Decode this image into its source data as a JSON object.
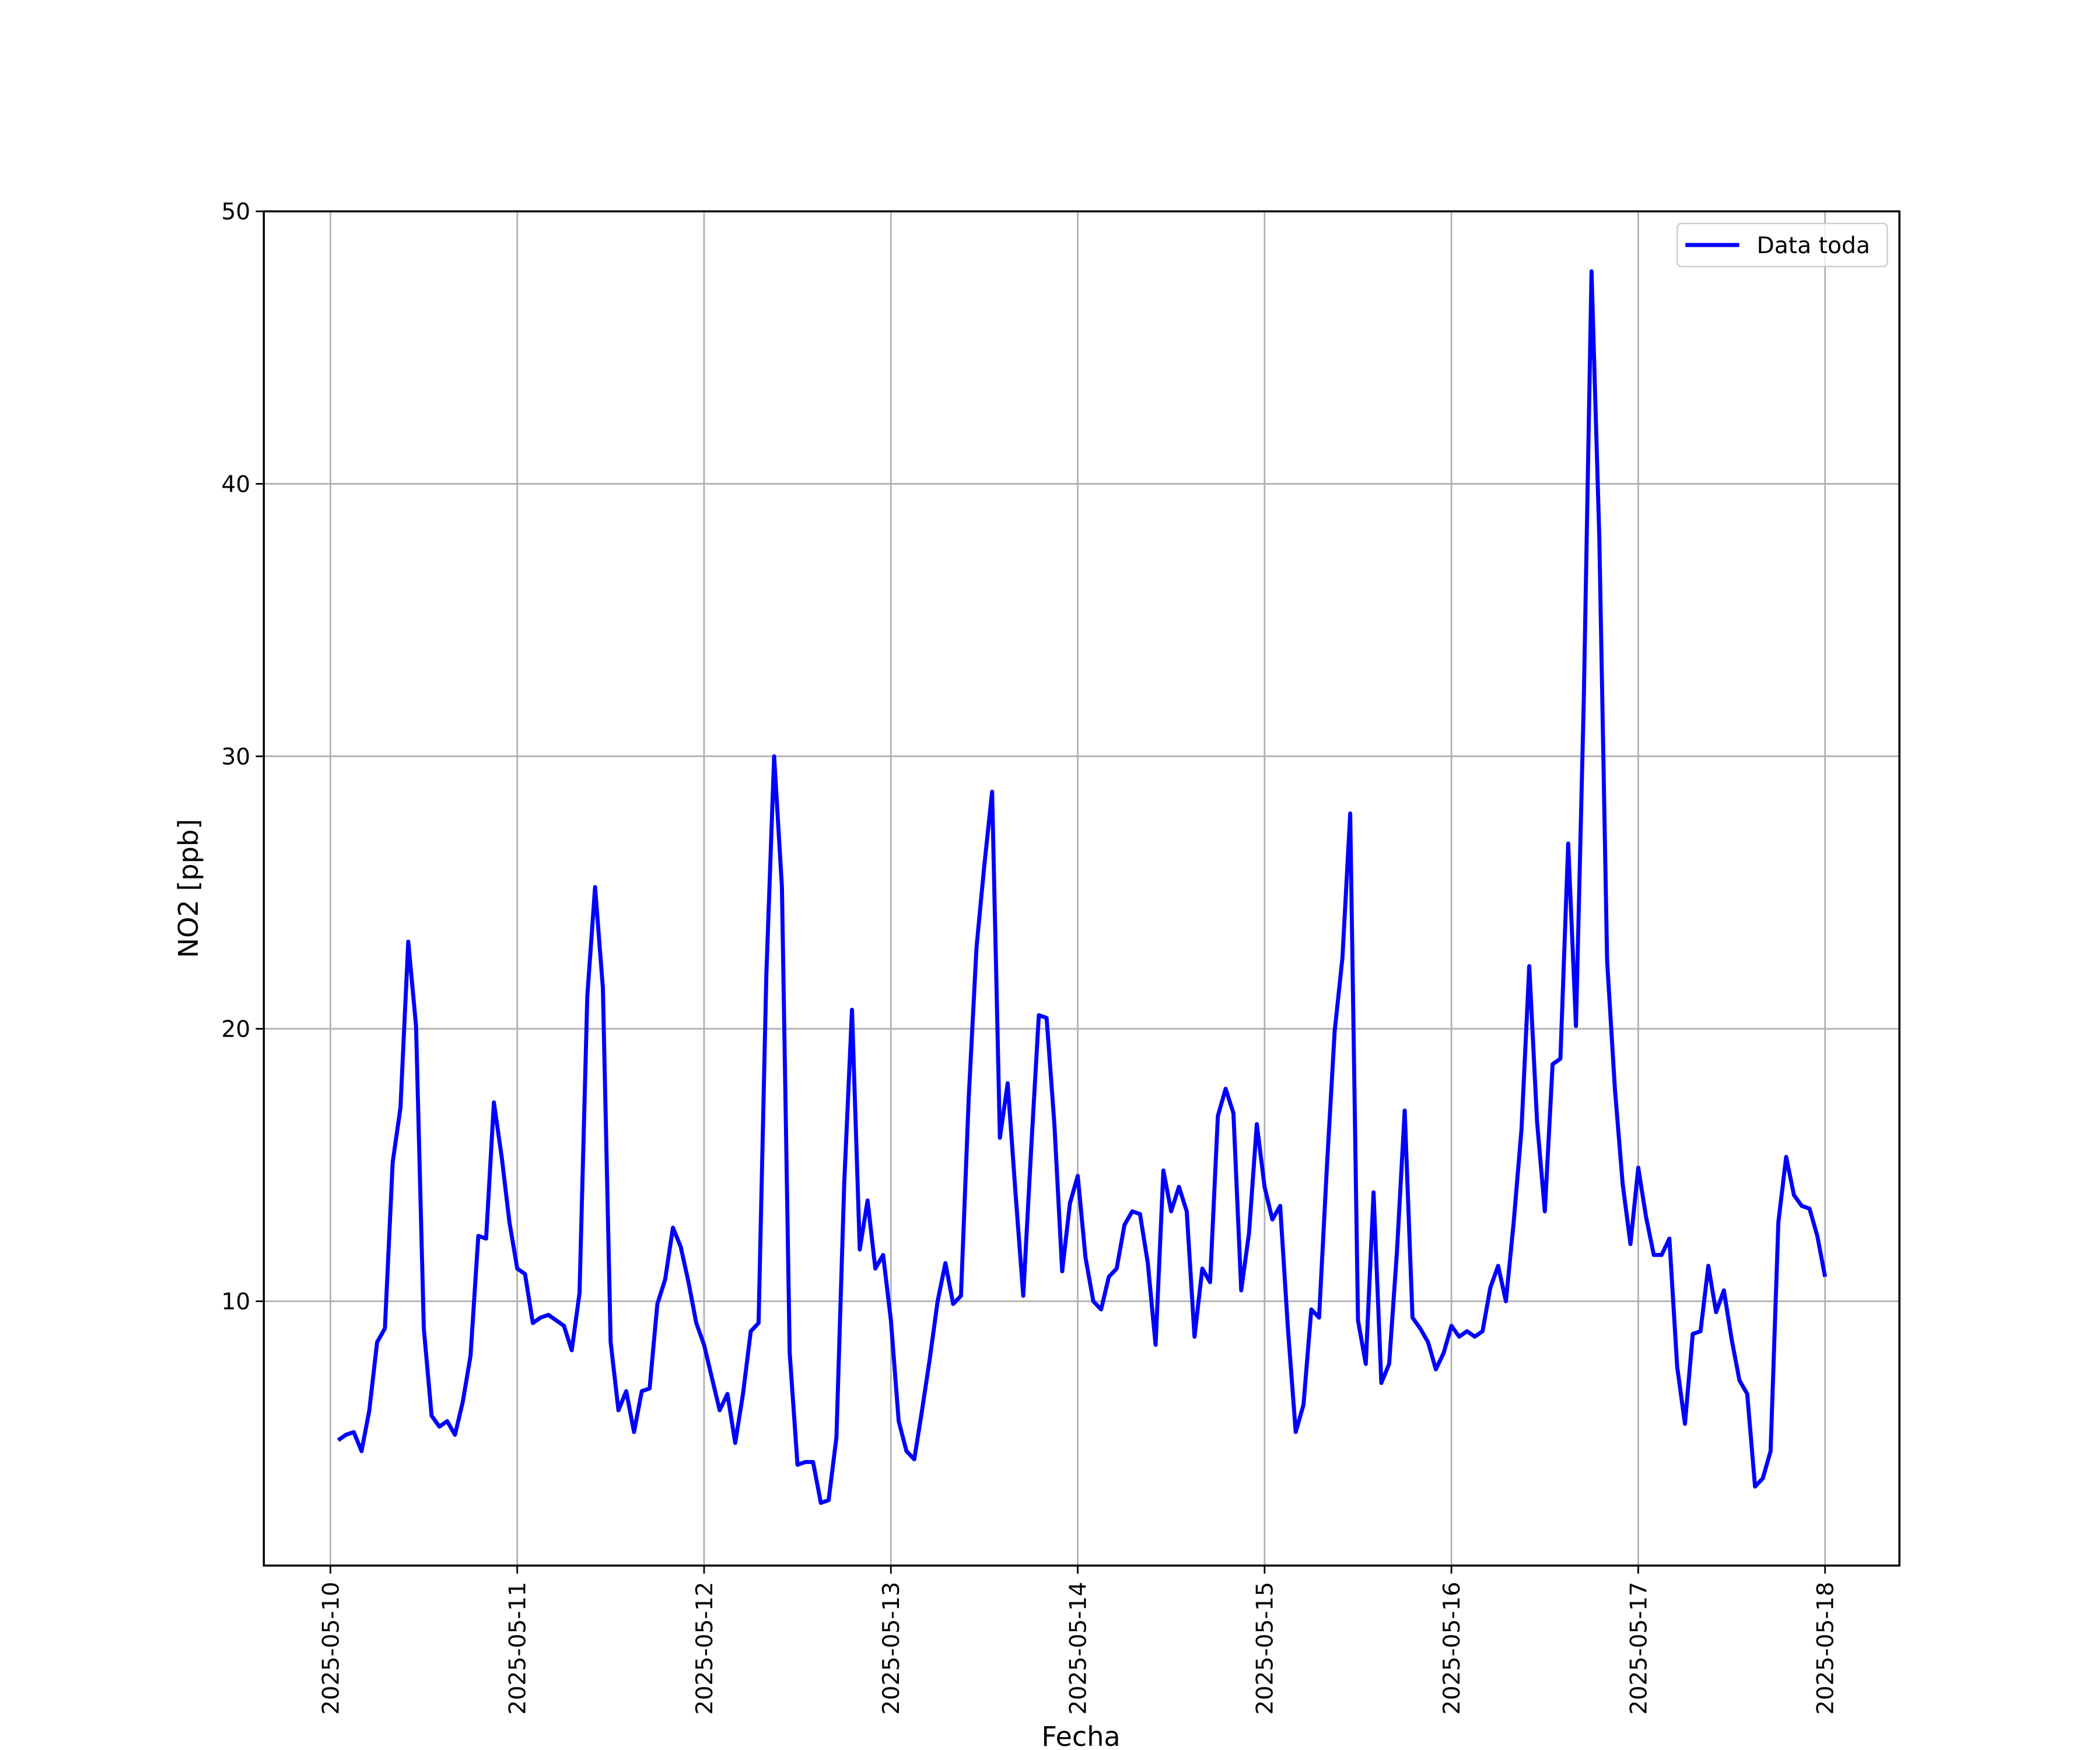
{
  "chart_data": {
    "type": "line",
    "xlabel": "Fecha",
    "ylabel": "NO2 [ppb]",
    "x": [
      "2025-05-10 01:00",
      "2025-05-10 02:00",
      "2025-05-10 03:00",
      "2025-05-10 04:00",
      "2025-05-10 05:00",
      "2025-05-10 06:00",
      "2025-05-10 07:00",
      "2025-05-10 08:00",
      "2025-05-10 09:00",
      "2025-05-10 10:00",
      "2025-05-10 11:00",
      "2025-05-10 12:00",
      "2025-05-10 13:00",
      "2025-05-10 14:00",
      "2025-05-10 15:00",
      "2025-05-10 16:00",
      "2025-05-10 17:00",
      "2025-05-10 18:00",
      "2025-05-10 19:00",
      "2025-05-10 20:00",
      "2025-05-10 21:00",
      "2025-05-10 22:00",
      "2025-05-10 23:00",
      "2025-05-11 00:00",
      "2025-05-11 01:00",
      "2025-05-11 02:00",
      "2025-05-11 03:00",
      "2025-05-11 04:00",
      "2025-05-11 05:00",
      "2025-05-11 06:00",
      "2025-05-11 07:00",
      "2025-05-11 08:00",
      "2025-05-11 09:00",
      "2025-05-11 10:00",
      "2025-05-11 11:00",
      "2025-05-11 12:00",
      "2025-05-11 13:00",
      "2025-05-11 14:00",
      "2025-05-11 15:00",
      "2025-05-11 16:00",
      "2025-05-11 17:00",
      "2025-05-11 18:00",
      "2025-05-11 19:00",
      "2025-05-11 20:00",
      "2025-05-11 21:00",
      "2025-05-11 22:00",
      "2025-05-11 23:00",
      "2025-05-12 00:00",
      "2025-05-12 01:00",
      "2025-05-12 02:00",
      "2025-05-12 03:00",
      "2025-05-12 04:00",
      "2025-05-12 05:00",
      "2025-05-12 06:00",
      "2025-05-12 07:00",
      "2025-05-12 08:00",
      "2025-05-12 09:00",
      "2025-05-12 10:00",
      "2025-05-12 11:00",
      "2025-05-12 12:00",
      "2025-05-12 13:00",
      "2025-05-12 14:00",
      "2025-05-12 15:00",
      "2025-05-12 16:00",
      "2025-05-12 17:00",
      "2025-05-12 18:00",
      "2025-05-12 19:00",
      "2025-05-12 20:00",
      "2025-05-12 21:00",
      "2025-05-12 22:00",
      "2025-05-12 23:00",
      "2025-05-13 00:00",
      "2025-05-13 01:00",
      "2025-05-13 02:00",
      "2025-05-13 03:00",
      "2025-05-13 04:00",
      "2025-05-13 05:00",
      "2025-05-13 06:00",
      "2025-05-13 07:00",
      "2025-05-13 08:00",
      "2025-05-13 09:00",
      "2025-05-13 10:00",
      "2025-05-13 11:00",
      "2025-05-13 12:00",
      "2025-05-13 13:00",
      "2025-05-13 14:00",
      "2025-05-13 15:00",
      "2025-05-13 16:00",
      "2025-05-13 17:00",
      "2025-05-13 18:00",
      "2025-05-13 19:00",
      "2025-05-13 20:00",
      "2025-05-13 21:00",
      "2025-05-13 22:00",
      "2025-05-13 23:00",
      "2025-05-14 00:00",
      "2025-05-14 01:00",
      "2025-05-14 02:00",
      "2025-05-14 03:00",
      "2025-05-14 04:00",
      "2025-05-14 05:00",
      "2025-05-14 06:00",
      "2025-05-14 07:00",
      "2025-05-14 08:00",
      "2025-05-14 09:00",
      "2025-05-14 10:00",
      "2025-05-14 11:00",
      "2025-05-14 12:00",
      "2025-05-14 13:00",
      "2025-05-14 14:00",
      "2025-05-14 15:00",
      "2025-05-14 16:00",
      "2025-05-14 17:00",
      "2025-05-14 18:00",
      "2025-05-14 19:00",
      "2025-05-14 20:00",
      "2025-05-14 21:00",
      "2025-05-14 22:00",
      "2025-05-14 23:00",
      "2025-05-15 00:00",
      "2025-05-15 01:00",
      "2025-05-15 02:00",
      "2025-05-15 03:00",
      "2025-05-15 04:00",
      "2025-05-15 05:00",
      "2025-05-15 06:00",
      "2025-05-15 07:00",
      "2025-05-15 08:00",
      "2025-05-15 09:00",
      "2025-05-15 10:00",
      "2025-05-15 11:00",
      "2025-05-15 12:00",
      "2025-05-15 13:00",
      "2025-05-15 14:00",
      "2025-05-15 15:00",
      "2025-05-15 16:00",
      "2025-05-15 17:00",
      "2025-05-15 18:00",
      "2025-05-15 19:00",
      "2025-05-15 20:00",
      "2025-05-15 21:00",
      "2025-05-15 22:00",
      "2025-05-15 23:00",
      "2025-05-16 00:00",
      "2025-05-16 01:00",
      "2025-05-16 02:00",
      "2025-05-16 03:00",
      "2025-05-16 04:00",
      "2025-05-16 05:00",
      "2025-05-16 06:00",
      "2025-05-16 07:00",
      "2025-05-16 08:00",
      "2025-05-16 09:00",
      "2025-05-16 10:00",
      "2025-05-16 11:00",
      "2025-05-16 12:00",
      "2025-05-16 13:00",
      "2025-05-16 14:00",
      "2025-05-16 15:00",
      "2025-05-16 16:00",
      "2025-05-16 17:00",
      "2025-05-16 18:00",
      "2025-05-16 19:00",
      "2025-05-16 20:00",
      "2025-05-16 21:00",
      "2025-05-16 22:00",
      "2025-05-16 23:00",
      "2025-05-17 00:00",
      "2025-05-17 01:00",
      "2025-05-17 02:00",
      "2025-05-17 03:00",
      "2025-05-17 04:00",
      "2025-05-17 05:00",
      "2025-05-17 06:00",
      "2025-05-17 07:00",
      "2025-05-17 08:00",
      "2025-05-17 09:00",
      "2025-05-17 10:00",
      "2025-05-17 11:00",
      "2025-05-17 12:00",
      "2025-05-17 13:00",
      "2025-05-17 14:00",
      "2025-05-17 15:00",
      "2025-05-17 16:00",
      "2025-05-17 17:00",
      "2025-05-17 18:00",
      "2025-05-17 19:00",
      "2025-05-17 20:00",
      "2025-05-17 21:00",
      "2025-05-17 22:00",
      "2025-05-17 23:00",
      "2025-05-18 00:00"
    ],
    "series": [
      {
        "name": "Data toda",
        "color": "#0000ff",
        "values": [
          4.9,
          5.1,
          5.2,
          4.5,
          6.0,
          8.5,
          9.0,
          15.1,
          17.1,
          23.2,
          20.1,
          9.0,
          5.8,
          5.4,
          5.6,
          5.1,
          6.3,
          8.0,
          12.4,
          12.3,
          17.3,
          15.3,
          12.9,
          11.2,
          11.0,
          9.2,
          9.4,
          9.5,
          9.3,
          9.1,
          8.2,
          10.3,
          21.2,
          25.2,
          21.5,
          8.5,
          6.0,
          6.7,
          5.2,
          6.7,
          6.8,
          9.9,
          10.8,
          12.7,
          12.0,
          10.7,
          9.2,
          8.4,
          7.2,
          6.0,
          6.6,
          4.8,
          6.6,
          8.9,
          9.2,
          22.0,
          30.0,
          25.2,
          8.1,
          4.0,
          4.1,
          4.1,
          2.6,
          2.7,
          5.0,
          14.3,
          20.7,
          11.9,
          13.7,
          11.2,
          11.7,
          9.3,
          5.6,
          4.5,
          4.2,
          6.0,
          7.9,
          10.0,
          11.4,
          9.9,
          10.2,
          17.5,
          23.0,
          26.0,
          28.7,
          16.0,
          18.0,
          14.0,
          10.2,
          15.5,
          20.5,
          20.4,
          16.5,
          11.1,
          13.6,
          14.6,
          11.6,
          10.0,
          9.7,
          10.9,
          11.2,
          12.8,
          13.3,
          13.2,
          11.4,
          8.4,
          14.8,
          13.3,
          14.2,
          13.3,
          8.7,
          11.2,
          10.7,
          16.8,
          17.8,
          16.9,
          10.4,
          12.5,
          16.5,
          14.2,
          13.0,
          13.5,
          9.0,
          5.2,
          6.2,
          9.7,
          9.4,
          14.9,
          19.9,
          22.6,
          27.9,
          9.3,
          7.7,
          14.0,
          7.0,
          7.7,
          11.8,
          17.0,
          9.4,
          9.0,
          8.5,
          7.5,
          8.1,
          9.1,
          8.7,
          8.9,
          8.7,
          8.9,
          10.5,
          11.3,
          10.0,
          12.9,
          16.3,
          22.3,
          16.6,
          13.3,
          18.7,
          18.9,
          26.8,
          20.1,
          32.0,
          47.8,
          38.0,
          22.5,
          17.8,
          14.3,
          12.1,
          14.9,
          13.1,
          11.7,
          11.7,
          12.3,
          7.6,
          5.5,
          8.8,
          8.9,
          11.3,
          9.6,
          10.4,
          8.6,
          7.1,
          6.6,
          3.2,
          3.5,
          4.5,
          12.9,
          15.3,
          13.9,
          13.5,
          13.4,
          12.4,
          10.9
        ]
      }
    ],
    "xlim": [
      "2025-05-09 15:27",
      "2025-05-18 09:33"
    ],
    "xticks": [
      "2025-05-10",
      "2025-05-11",
      "2025-05-12",
      "2025-05-13",
      "2025-05-14",
      "2025-05-15",
      "2025-05-16",
      "2025-05-17",
      "2025-05-18"
    ],
    "ylim": [
      0.3,
      50
    ],
    "yticks": [
      10,
      20,
      30,
      40,
      50
    ],
    "grid": true,
    "legend": "upper right"
  }
}
